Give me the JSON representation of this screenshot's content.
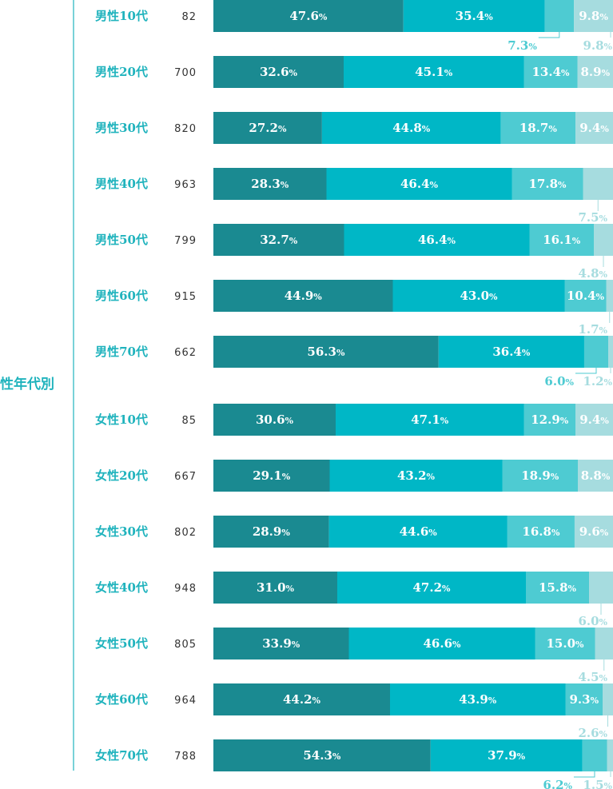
{
  "chart_data": {
    "type": "bar",
    "orientation": "horizontal",
    "stacked": true,
    "group_label": "性年代別",
    "unit": "%",
    "colors": {
      "series_fills": [
        "#1a8a91",
        "#00b7c6",
        "#4ecbd2",
        "#a6dcdf"
      ],
      "label_text": "#20b3bd",
      "outside_label": "#a6dcdf",
      "axis_line": "#20b3bd"
    },
    "rows": [
      {
        "label": "男性10代",
        "n": "82",
        "values": [
          47.6,
          35.4,
          7.3,
          9.8
        ],
        "texts": [
          "47.6",
          "35.4",
          "7.3",
          "9.8"
        ]
      },
      {
        "label": "男性20代",
        "n": "700",
        "values": [
          32.6,
          45.1,
          13.4,
          8.9
        ],
        "texts": [
          "32.6",
          "45.1",
          "13.4",
          "8.9"
        ]
      },
      {
        "label": "男性30代",
        "n": "820",
        "values": [
          27.2,
          44.8,
          18.7,
          9.4
        ],
        "texts": [
          "27.2",
          "44.8",
          "18.7",
          "9.4"
        ]
      },
      {
        "label": "男性40代",
        "n": "963",
        "values": [
          28.3,
          46.4,
          17.8,
          7.5
        ],
        "texts": [
          "28.3",
          "46.4",
          "17.8",
          "7.5"
        ]
      },
      {
        "label": "男性50代",
        "n": "799",
        "values": [
          32.7,
          46.4,
          16.1,
          4.8
        ],
        "texts": [
          "32.7",
          "46.4",
          "16.1",
          "4.8"
        ]
      },
      {
        "label": "男性60代",
        "n": "915",
        "values": [
          44.9,
          43.0,
          10.4,
          1.7
        ],
        "texts": [
          "44.9",
          "43.0",
          "10.4",
          "1.7"
        ]
      },
      {
        "label": "男性70代",
        "n": "662",
        "values": [
          56.3,
          36.4,
          6.0,
          1.2
        ],
        "texts": [
          "56.3",
          "36.4",
          "6.0",
          "1.2"
        ]
      },
      {
        "label": "女性10代",
        "n": "85",
        "values": [
          30.6,
          47.1,
          12.9,
          9.4
        ],
        "texts": [
          "30.6",
          "47.1",
          "12.9",
          "9.4"
        ]
      },
      {
        "label": "女性20代",
        "n": "667",
        "values": [
          29.1,
          43.2,
          18.9,
          8.8
        ],
        "texts": [
          "29.1",
          "43.2",
          "18.9",
          "8.8"
        ]
      },
      {
        "label": "女性30代",
        "n": "802",
        "values": [
          28.9,
          44.6,
          16.8,
          9.6
        ],
        "texts": [
          "28.9",
          "44.6",
          "16.8",
          "9.6"
        ]
      },
      {
        "label": "女性40代",
        "n": "948",
        "values": [
          31.0,
          47.2,
          15.8,
          6.0
        ],
        "texts": [
          "31.0",
          "47.2",
          "15.8",
          "6.0"
        ]
      },
      {
        "label": "女性50代",
        "n": "805",
        "values": [
          33.9,
          46.6,
          15.0,
          4.5
        ],
        "texts": [
          "33.9",
          "46.6",
          "15.0",
          "4.5"
        ]
      },
      {
        "label": "女性60代",
        "n": "964",
        "values": [
          44.2,
          43.9,
          9.3,
          2.6
        ],
        "texts": [
          "44.2",
          "43.9",
          "9.3",
          "2.6"
        ]
      },
      {
        "label": "女性70代",
        "n": "788",
        "values": [
          54.3,
          37.9,
          6.2,
          1.5
        ],
        "texts": [
          "54.3",
          "37.9",
          "6.2",
          "1.5"
        ]
      }
    ]
  }
}
